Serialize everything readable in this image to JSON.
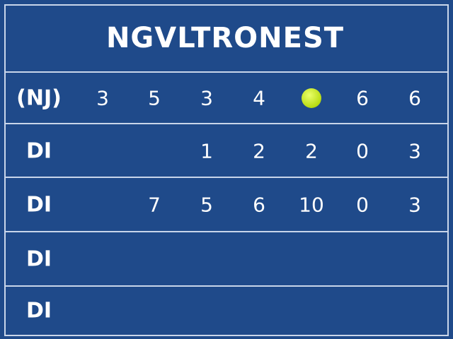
{
  "header": {
    "title": "NGVLTRONEST"
  },
  "table": {
    "header": [
      "(NJ)",
      "3",
      "5",
      "3",
      "4",
      null,
      "6",
      "6"
    ],
    "rows": [
      [
        "DI",
        null,
        null,
        "1",
        "2",
        "2",
        "0",
        "3"
      ],
      [
        "DI",
        null,
        "7",
        "5",
        "6",
        "10",
        "0",
        "3"
      ],
      [
        "DI",
        null,
        null,
        null,
        null,
        null,
        null,
        null
      ],
      [
        "DI",
        null,
        null,
        null,
        null,
        null,
        null,
        null
      ]
    ]
  }
}
